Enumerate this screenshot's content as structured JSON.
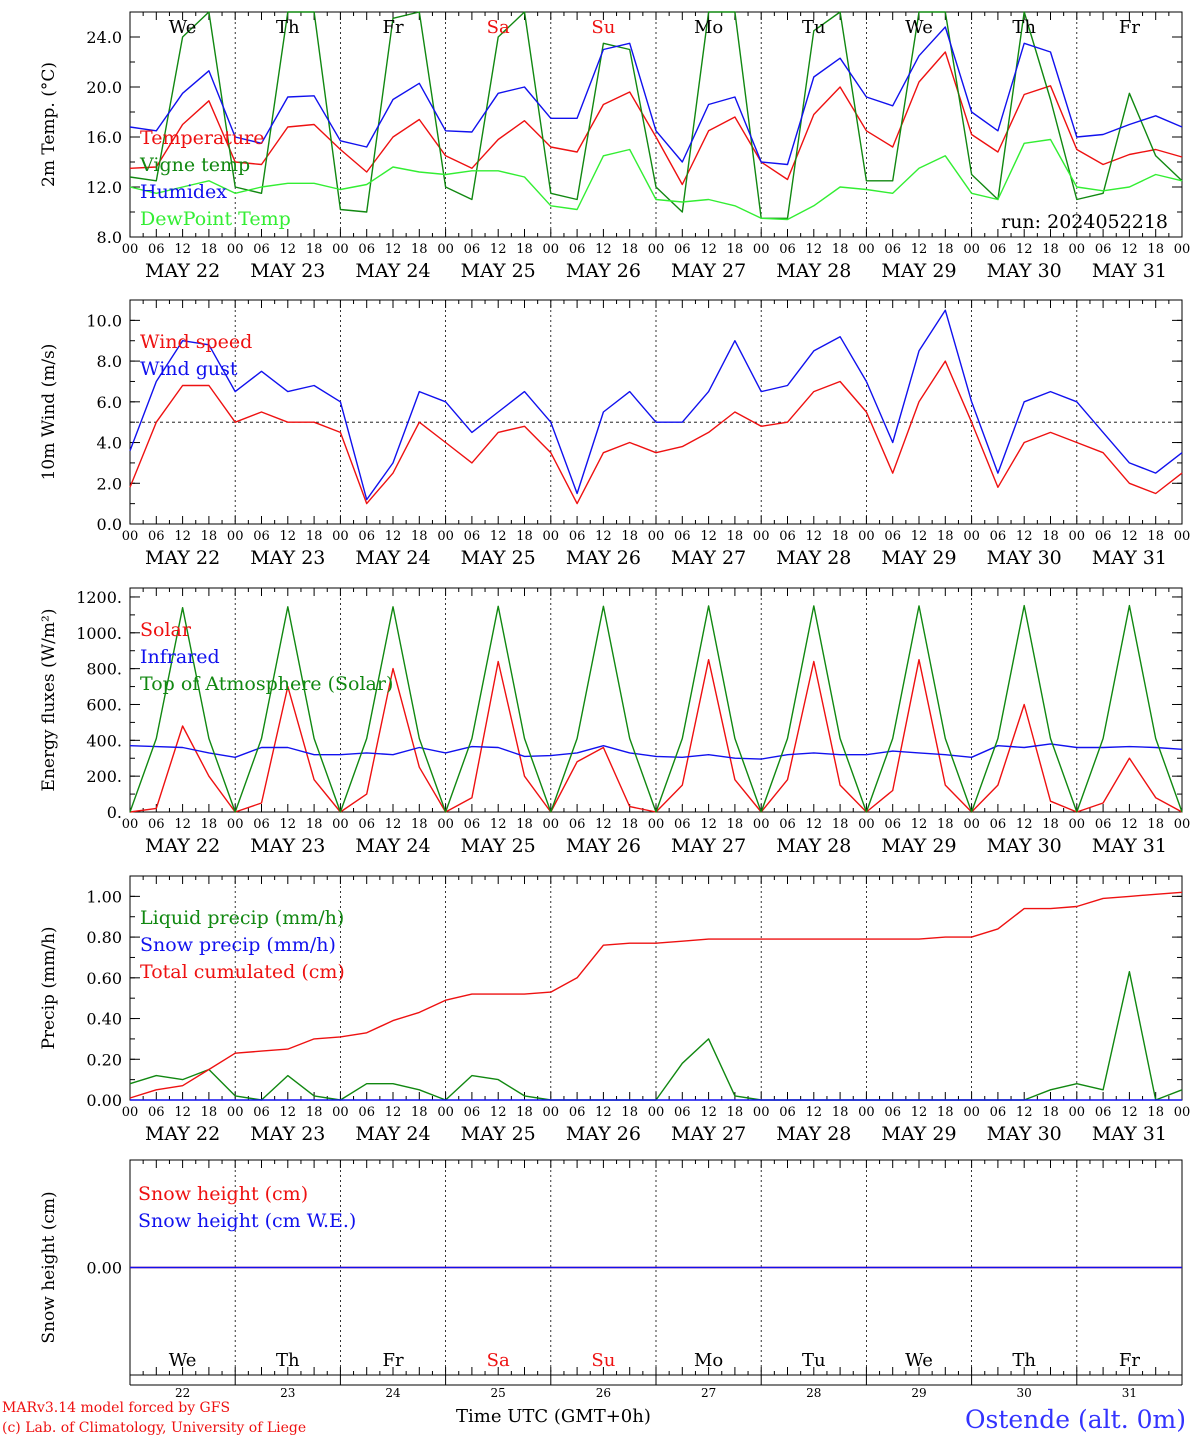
{
  "run_label": "run: 2024052218",
  "weekdays": [
    {
      "label": "We",
      "weekend": false
    },
    {
      "label": "Th",
      "weekend": false
    },
    {
      "label": "Fr",
      "weekend": false
    },
    {
      "label": "Sa",
      "weekend": true
    },
    {
      "label": "Su",
      "weekend": true
    },
    {
      "label": "Mo",
      "weekend": false
    },
    {
      "label": "Tu",
      "weekend": false
    },
    {
      "label": "We",
      "weekend": false
    },
    {
      "label": "Th",
      "weekend": false
    },
    {
      "label": "Fr",
      "weekend": false
    }
  ],
  "date_labels": [
    "MAY 22",
    "MAY 23",
    "MAY 24",
    "MAY 25",
    "MAY 26",
    "MAY 27",
    "MAY 28",
    "MAY 29",
    "MAY 30",
    "MAY 31"
  ],
  "day_numbers": [
    "22",
    "23",
    "24",
    "25",
    "26",
    "27",
    "28",
    "29",
    "30",
    "31"
  ],
  "hour_labels": [
    "00",
    "06",
    "12",
    "18"
  ],
  "x_axis_label": "Time UTC (GMT+0h)",
  "model_note": "MARv3.14 model forced by GFS",
  "credit_note": "(c) Lab. of Climatology, University of Liege",
  "location_title": "Ostende (alt. 0m)",
  "colors": {
    "red": "#ee1111",
    "green": "#118811",
    "blue": "#1111ee",
    "lightgreen": "#33ee33",
    "purple": "#9933cc",
    "weekend": "#ee1111"
  },
  "chart_data": [
    {
      "id": "temp",
      "type": "line",
      "ylabel": "2m Temp. (°C)",
      "ylim": [
        8,
        26
      ],
      "yticks": [
        8.0,
        12.0,
        16.0,
        20.0,
        24.0
      ],
      "ytick_labels": [
        "8.0",
        "12.0",
        "16.0",
        "20.0",
        "24.0"
      ],
      "x": "hours since MAY 22 00 UTC (one point every 6h)",
      "series": [
        {
          "name": "Temperature",
          "color": "red",
          "values": [
            13.5,
            13.6,
            17.0,
            18.9,
            14.0,
            13.8,
            16.8,
            17.0,
            15.0,
            13.2,
            16.0,
            17.4,
            14.5,
            13.5,
            15.8,
            17.3,
            15.2,
            14.8,
            18.6,
            19.6,
            16.0,
            12.2,
            16.5,
            17.6,
            14.0,
            12.6,
            17.8,
            20.0,
            16.5,
            15.2,
            20.4,
            22.8,
            16.2,
            14.8,
            19.4,
            20.1,
            15.0,
            13.8,
            14.6,
            15.0,
            14.4
          ]
        },
        {
          "name": "Vigne temp",
          "color": "green",
          "values": [
            12.8,
            12.5,
            24.0,
            26.5,
            12.0,
            11.5,
            26.0,
            26.5,
            10.2,
            10.0,
            25.5,
            26.5,
            12.0,
            11.0,
            24.0,
            26.5,
            11.5,
            11.0,
            23.5,
            23.0,
            12.0,
            10.0,
            26.5,
            26.5,
            9.5,
            9.5,
            24.5,
            26.5,
            12.5,
            12.5,
            26.5,
            26.5,
            13.0,
            11.0,
            26.5,
            19.0,
            11.0,
            11.5,
            19.5,
            14.5,
            12.5
          ]
        },
        {
          "name": "Humidex",
          "color": "blue",
          "values": [
            16.8,
            16.5,
            19.5,
            21.3,
            16.0,
            15.5,
            19.2,
            19.3,
            15.7,
            15.2,
            19.0,
            20.3,
            16.5,
            16.4,
            19.5,
            20.0,
            17.5,
            17.5,
            23.0,
            23.5,
            16.5,
            14.0,
            18.6,
            19.2,
            14.0,
            13.8,
            20.8,
            22.3,
            19.2,
            18.5,
            22.5,
            24.8,
            18.0,
            16.5,
            23.5,
            22.8,
            16.0,
            16.2,
            17.0,
            17.7,
            16.8
          ]
        },
        {
          "name": "DewPoint Temp",
          "color": "lightgreen",
          "values": [
            12.0,
            11.5,
            12.0,
            12.5,
            11.5,
            12.0,
            12.3,
            12.3,
            11.8,
            12.2,
            13.6,
            13.2,
            13.0,
            13.3,
            13.3,
            12.8,
            10.5,
            10.2,
            14.5,
            15.0,
            11.0,
            10.8,
            11.0,
            10.5,
            9.5,
            9.4,
            10.5,
            12.0,
            11.8,
            11.5,
            13.5,
            14.5,
            11.5,
            11.0,
            15.5,
            15.8,
            12.0,
            11.7,
            12.0,
            13.0,
            12.5
          ]
        }
      ]
    },
    {
      "id": "wind",
      "type": "line",
      "ylabel": "10m Wind (m/s)",
      "ylim": [
        0,
        11
      ],
      "ref_line": 5.0,
      "yticks": [
        0,
        2,
        4,
        6,
        8,
        10
      ],
      "ytick_labels": [
        "0.0",
        "2.0",
        "4.0",
        "6.0",
        "8.0",
        "10.0"
      ],
      "series": [
        {
          "name": "Wind speed",
          "color": "red",
          "values": [
            1.8,
            5.0,
            6.8,
            6.8,
            5.0,
            5.5,
            5.0,
            5.0,
            4.5,
            1.0,
            2.5,
            5.0,
            4.0,
            3.0,
            4.5,
            4.8,
            3.5,
            1.0,
            3.5,
            4.0,
            3.5,
            3.8,
            4.5,
            5.5,
            4.8,
            5.0,
            6.5,
            7.0,
            5.5,
            2.5,
            6.0,
            8.0,
            5.0,
            1.8,
            4.0,
            4.5,
            4.0,
            3.5,
            2.0,
            1.5,
            2.5
          ]
        },
        {
          "name": "Wind gust",
          "color": "blue",
          "values": [
            3.6,
            7.0,
            9.0,
            8.8,
            6.5,
            7.5,
            6.5,
            6.8,
            6.0,
            1.2,
            3.0,
            6.5,
            6.0,
            4.5,
            5.5,
            6.5,
            5.0,
            1.5,
            5.5,
            6.5,
            5.0,
            5.0,
            6.5,
            9.0,
            6.5,
            6.8,
            8.5,
            9.2,
            7.0,
            4.0,
            8.5,
            10.5,
            6.0,
            2.5,
            6.0,
            6.5,
            6.0,
            4.5,
            3.0,
            2.5,
            3.5
          ]
        }
      ]
    },
    {
      "id": "energy",
      "type": "line",
      "ylabel": "Energy fluxes (W/m²)",
      "ylim": [
        0,
        1250
      ],
      "yticks": [
        0,
        200,
        400,
        600,
        800,
        1000,
        1200
      ],
      "ytick_labels": [
        "0.",
        "200.",
        "400.",
        "600.",
        "800.",
        "1000.",
        "1200."
      ],
      "series": [
        {
          "name": "Solar",
          "color": "red",
          "values": [
            0,
            20,
            480,
            200,
            0,
            50,
            700,
            180,
            0,
            100,
            800,
            250,
            0,
            80,
            840,
            200,
            0,
            280,
            360,
            30,
            0,
            150,
            850,
            180,
            0,
            180,
            840,
            150,
            0,
            120,
            850,
            150,
            0,
            150,
            600,
            60,
            0,
            50,
            300,
            80,
            0
          ]
        },
        {
          "name": "Infrared",
          "color": "blue",
          "values": [
            370,
            365,
            360,
            330,
            305,
            360,
            360,
            320,
            320,
            330,
            320,
            360,
            330,
            365,
            360,
            310,
            315,
            330,
            370,
            330,
            310,
            305,
            320,
            300,
            295,
            320,
            330,
            320,
            320,
            340,
            330,
            320,
            305,
            370,
            360,
            380,
            360,
            360,
            365,
            360,
            350
          ]
        },
        {
          "name": "Top of Atmosphere (Solar)",
          "color": "green",
          "values": [
            0,
            410,
            1140,
            410,
            0,
            410,
            1145,
            410,
            0,
            410,
            1145,
            410,
            0,
            410,
            1148,
            410,
            0,
            410,
            1148,
            410,
            0,
            410,
            1150,
            410,
            0,
            410,
            1150,
            410,
            0,
            410,
            1150,
            410,
            0,
            410,
            1152,
            410,
            0,
            410,
            1152,
            410,
            0
          ]
        }
      ]
    },
    {
      "id": "precip",
      "type": "line",
      "ylabel": "Precip (mm/h)",
      "ylim": [
        0,
        1.1
      ],
      "yticks": [
        0,
        0.2,
        0.4,
        0.6,
        0.8,
        1.0
      ],
      "ytick_labels": [
        "0.00",
        "0.20",
        "0.40",
        "0.60",
        "0.80",
        "1.00"
      ],
      "series": [
        {
          "name": "Liquid precip (mm/h)",
          "color": "green",
          "values": [
            0.08,
            0.12,
            0.1,
            0.15,
            0.02,
            0.0,
            0.12,
            0.02,
            0.0,
            0.08,
            0.08,
            0.05,
            0.0,
            0.12,
            0.1,
            0.02,
            0.0,
            0.0,
            0.0,
            0.0,
            0.0,
            0.18,
            0.3,
            0.02,
            0.0,
            0.0,
            0.0,
            0.0,
            0.0,
            0.0,
            0.0,
            0.0,
            0.0,
            0.0,
            0.0,
            0.05,
            0.08,
            0.05,
            0.63,
            0.0,
            0.05
          ]
        },
        {
          "name": "Snow precip (mm/h)",
          "color": "blue",
          "values": [
            0,
            0,
            0,
            0,
            0,
            0,
            0,
            0,
            0,
            0,
            0,
            0,
            0,
            0,
            0,
            0,
            0,
            0,
            0,
            0,
            0,
            0,
            0,
            0,
            0,
            0,
            0,
            0,
            0,
            0,
            0,
            0,
            0,
            0,
            0,
            0,
            0,
            0,
            0,
            0,
            0
          ]
        },
        {
          "name": "Total cumulated (cm)",
          "color": "red",
          "values": [
            0.01,
            0.05,
            0.07,
            0.15,
            0.23,
            0.24,
            0.25,
            0.3,
            0.31,
            0.33,
            0.39,
            0.43,
            0.49,
            0.52,
            0.52,
            0.52,
            0.53,
            0.6,
            0.76,
            0.77,
            0.77,
            0.78,
            0.79,
            0.79,
            0.79,
            0.79,
            0.79,
            0.79,
            0.79,
            0.79,
            0.79,
            0.8,
            0.8,
            0.84,
            0.94,
            0.94,
            0.95,
            0.99,
            1.0,
            1.01,
            1.02
          ]
        }
      ]
    },
    {
      "id": "snow",
      "type": "line",
      "ylabel": "Snow height (cm)",
      "ylim": [
        -1,
        1
      ],
      "yticks": [
        0
      ],
      "ytick_labels": [
        "0.00"
      ],
      "series": [
        {
          "name": "Snow height (cm)",
          "color": "red",
          "values": [
            0,
            0,
            0,
            0,
            0,
            0,
            0,
            0,
            0,
            0,
            0,
            0,
            0,
            0,
            0,
            0,
            0,
            0,
            0,
            0,
            0,
            0,
            0,
            0,
            0,
            0,
            0,
            0,
            0,
            0,
            0,
            0,
            0,
            0,
            0,
            0,
            0,
            0,
            0,
            0,
            0
          ]
        },
        {
          "name": "Snow height (cm W.E.)",
          "color": "blue",
          "values": [
            0,
            0,
            0,
            0,
            0,
            0,
            0,
            0,
            0,
            0,
            0,
            0,
            0,
            0,
            0,
            0,
            0,
            0,
            0,
            0,
            0,
            0,
            0,
            0,
            0,
            0,
            0,
            0,
            0,
            0,
            0,
            0,
            0,
            0,
            0,
            0,
            0,
            0,
            0,
            0,
            0
          ]
        }
      ]
    }
  ]
}
